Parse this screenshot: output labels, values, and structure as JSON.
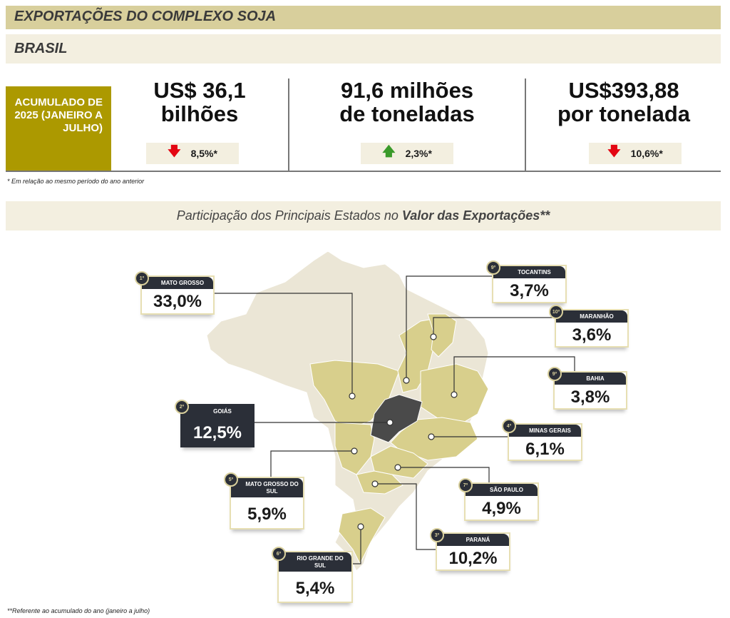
{
  "header": {
    "title": "EXPORTAÇÕES DO COMPLEXO SOJA",
    "subtitle": "BRASIL"
  },
  "summary": {
    "period_label": "ACUMULADO DE 2025 (JANEIRO A JULHO)",
    "kpis": [
      {
        "line1": "US$ 36,1",
        "line2": "bilhões",
        "delta": "8,5%*",
        "direction": "down"
      },
      {
        "line1": "91,6 milhões",
        "line2": "de toneladas",
        "delta": "2,3%*",
        "direction": "up"
      },
      {
        "line1": "US$393,88",
        "line2": "por tonelada",
        "delta": "10,6%*",
        "direction": "down"
      }
    ],
    "footnote": "* Em relação ao mesmo período do ano anterior"
  },
  "section": {
    "title_prefix": "Participação dos Principais Estados no ",
    "title_bold": "Valor das Exportações**"
  },
  "states": [
    {
      "rank": "1º",
      "name": "MATO GROSSO",
      "value": "33,0%"
    },
    {
      "rank": "2º",
      "name": "GOIÁS",
      "value": "12,5%"
    },
    {
      "rank": "3º",
      "name": "PARANÁ",
      "value": "10,2%"
    },
    {
      "rank": "4º",
      "name": "MINAS GERAIS",
      "value": "6,1%"
    },
    {
      "rank": "5º",
      "name": "MATO GROSSO DO SUL",
      "value": "5,9%"
    },
    {
      "rank": "6º",
      "name": "RIO GRANDE DO SUL",
      "value": "5,4%"
    },
    {
      "rank": "7º",
      "name": "SÃO PAULO",
      "value": "4,9%"
    },
    {
      "rank": "9º",
      "name": "BAHIA",
      "value": "3,8%"
    },
    {
      "rank": "9º",
      "name": "TOCANTINS",
      "value": "3,7%"
    },
    {
      "rank": "10º",
      "name": "MARANHÃO",
      "value": "3,6%"
    }
  ],
  "footnote2": "**Referente ao acumulado do ano (janeiro a julho)",
  "colors": {
    "olive": "#ac9900",
    "tan": "#d8cf8c",
    "light": "#ebe6d6",
    "dark": "#4a4a4a",
    "down": "#e30613",
    "up": "#3a9a2a"
  }
}
